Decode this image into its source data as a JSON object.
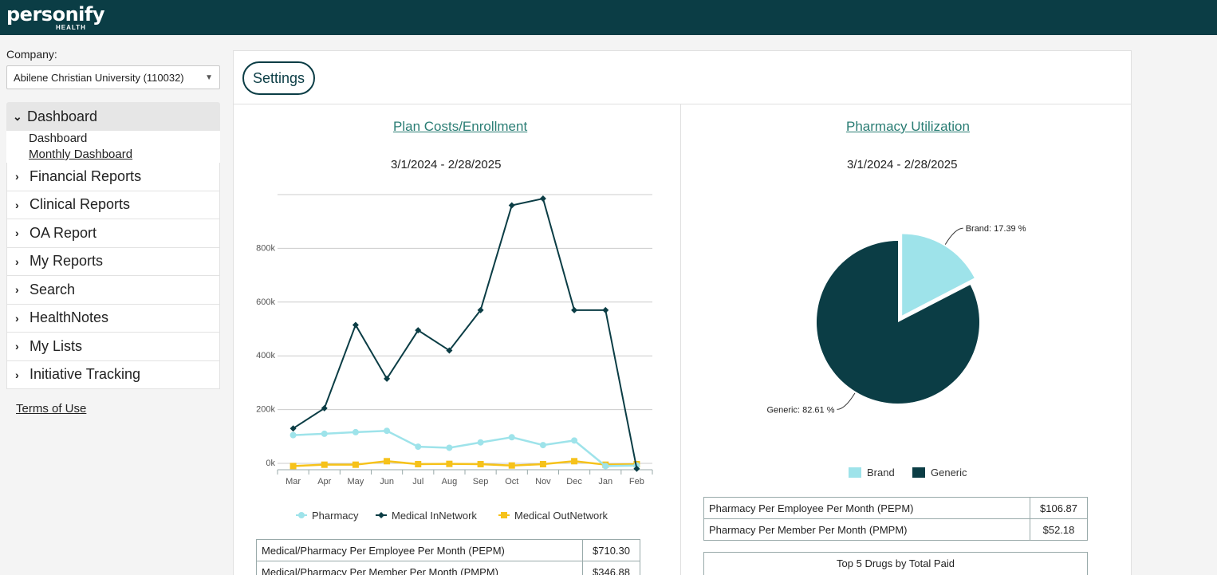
{
  "brand": {
    "name": "personify",
    "sub": "HEALTH"
  },
  "company": {
    "label": "Company:",
    "selected": "Abilene Christian University (110032)"
  },
  "nav": {
    "expanded": {
      "label": "Dashboard",
      "children": [
        "Dashboard",
        "Monthly Dashboard"
      ]
    },
    "items": [
      "Financial Reports",
      "Clinical Reports",
      "OA Report",
      "My Reports",
      "Search",
      "HealthNotes",
      "My Lists",
      "Initiative Tracking"
    ]
  },
  "terms": "Terms of Use",
  "settings_label": "Settings",
  "plan_card": {
    "title": "Plan Costs/Enrollment",
    "date": "3/1/2024 - 2/28/2025"
  },
  "pharm_card": {
    "title": "Pharmacy Utilization",
    "date": "3/1/2024 - 2/28/2025"
  },
  "plan_table": [
    {
      "label": "Medical/Pharmacy Per Employee Per Month (PEPM)",
      "value": "$710.30"
    },
    {
      "label": "Medical/Pharmacy Per Member Per Month (PMPM)",
      "value": "$346.88"
    }
  ],
  "pharm_table": [
    {
      "label": "Pharmacy Per Employee Per Month (PEPM)",
      "value": "$106.87"
    },
    {
      "label": "Pharmacy Per Member Per Month (PMPM)",
      "value": "$52.18"
    }
  ],
  "top5_label": "Top 5 Drugs by Total Paid",
  "colors": {
    "dark": "#0b3d45",
    "light": "#9ee3ea",
    "yellow": "#f6c21a",
    "accent": "#2a7d74"
  },
  "chart_data": [
    {
      "type": "line",
      "title": "Plan Costs/Enrollment",
      "categories": [
        "Mar",
        "Apr",
        "May",
        "Jun",
        "Jul",
        "Aug",
        "Sep",
        "Oct",
        "Nov",
        "Dec",
        "Jan",
        "Feb"
      ],
      "ylim": [
        0,
        1000000
      ],
      "yticks": [
        0,
        200000,
        400000,
        600000,
        800000
      ],
      "ytick_labels": [
        "0k",
        "200k",
        "400k",
        "600k",
        "800k"
      ],
      "series": [
        {
          "name": "Pharmacy",
          "color": "#9ee3ea",
          "marker": "circle",
          "values": [
            105000,
            110000,
            116000,
            121000,
            62000,
            58000,
            78000,
            97000,
            68000,
            85000,
            -10000,
            -8000
          ]
        },
        {
          "name": "Medical InNetwork",
          "color": "#0b3d45",
          "marker": "diamond",
          "values": [
            130000,
            205000,
            515000,
            315000,
            495000,
            420000,
            570000,
            960000,
            985000,
            570000,
            570000,
            -20000
          ]
        },
        {
          "name": "Medical OutNetwork",
          "color": "#f6c21a",
          "marker": "square",
          "values": [
            -10000,
            -5000,
            -5000,
            8000,
            -3000,
            -2000,
            -3000,
            -8000,
            -3000,
            8000,
            -5000,
            -3000
          ]
        }
      ]
    },
    {
      "type": "pie",
      "title": "Pharmacy Utilization",
      "slices": [
        {
          "name": "Brand",
          "value": 17.39,
          "label": "Brand: 17.39 %",
          "color": "#9ee3ea"
        },
        {
          "name": "Generic",
          "value": 82.61,
          "label": "Generic: 82.61 %",
          "color": "#0b3d45"
        }
      ]
    }
  ]
}
